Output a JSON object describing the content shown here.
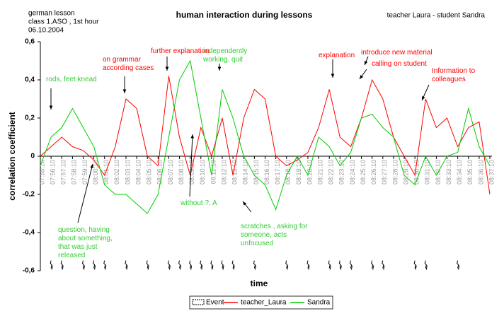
{
  "chart_data": {
    "type": "line",
    "title": "human interaction during lessons",
    "subtitle_left": [
      "german lesson",
      "class 1.ASO , 1st hour",
      "06.10.2004"
    ],
    "subtitle_right": "teacher Laura  - student Sandra",
    "y_label": "correlation coefficient",
    "x_label": "time",
    "categories": [
      "07:55:10",
      "07:56:10",
      "07:57:10",
      "07:58:10",
      "07:59:10",
      "08:00:10",
      "08:01:10",
      "08:02:10",
      "08:03:10",
      "08:04:10",
      "08:05:10",
      "08:06:10",
      "08:07:10",
      "08:08:10",
      "08:09:10",
      "08:10:10",
      "08:11:10",
      "08:12:10",
      "08:13:10",
      "08:14:10",
      "08:15:10",
      "08:16:10",
      "08:17:10",
      "08:18:10",
      "08:19:10",
      "08:20:10",
      "08:21:10",
      "08:22:10",
      "08:23:10",
      "08:24:10",
      "08:25:10",
      "08:26:10",
      "08:27:10",
      "08:28:10",
      "08:29:10",
      "08:30:10",
      "08:31:10",
      "08:32:10",
      "08:33:10",
      "08:34:10",
      "08:35:10",
      "08:36:10",
      "08:37:10"
    ],
    "series": [
      {
        "name": "Event",
        "color": "#000000",
        "kind": "event",
        "values": [
          null,
          -0.58,
          -0.58,
          null,
          -0.58,
          -0.58,
          -0.58,
          null,
          -0.58,
          null,
          -0.58,
          null,
          -0.58,
          -0.58,
          -0.58,
          -0.58,
          -0.58,
          -0.58,
          -0.58,
          null,
          -0.58,
          null,
          null,
          -0.58,
          null,
          -0.58,
          null,
          -0.58,
          -0.58,
          -0.58,
          null,
          -0.58,
          -0.58,
          null,
          null,
          -0.58,
          -0.58,
          null,
          null,
          -0.58,
          null,
          null,
          null
        ]
      },
      {
        "name": "teacher_Laura",
        "color": "#ff0000",
        "values": [
          0.0,
          0.05,
          0.1,
          0.05,
          0.03,
          -0.02,
          -0.1,
          0.05,
          0.3,
          0.25,
          0.0,
          -0.05,
          0.42,
          0.1,
          -0.1,
          0.15,
          0.0,
          0.2,
          -0.1,
          0.2,
          0.35,
          0.3,
          0.0,
          -0.05,
          -0.02,
          0.02,
          0.15,
          0.35,
          0.1,
          0.05,
          0.2,
          0.4,
          0.3,
          0.1,
          0.0,
          -0.1,
          0.3,
          0.15,
          0.2,
          0.05,
          0.15,
          0.18,
          -0.2
        ]
      },
      {
        "name": "Sandra",
        "color": "#00cc00",
        "values": [
          -0.05,
          0.1,
          0.15,
          0.25,
          0.15,
          0.05,
          -0.15,
          -0.2,
          -0.2,
          -0.25,
          -0.3,
          -0.2,
          0.1,
          0.4,
          0.5,
          0.2,
          -0.1,
          0.35,
          0.2,
          0.0,
          -0.1,
          -0.15,
          -0.28,
          -0.1,
          0.0,
          -0.1,
          0.1,
          0.05,
          -0.05,
          0.02,
          0.2,
          0.22,
          0.15,
          0.1,
          -0.1,
          -0.15,
          0.0,
          -0.1,
          0.0,
          0.02,
          0.25,
          0.05,
          -0.05
        ]
      }
    ],
    "ylim": [
      -0.6,
      0.6
    ],
    "yticks": [
      {
        "value": -0.6,
        "label": "-0,6"
      },
      {
        "value": -0.4,
        "label": "-0,4"
      },
      {
        "value": -0.2,
        "label": "-0,2"
      },
      0,
      {
        "value": 0.2,
        "label": "0,2"
      },
      {
        "value": 0.4,
        "label": "0,4"
      },
      {
        "value": 0.6,
        "label": "0,6"
      }
    ],
    "grid": false,
    "legend": "bottom",
    "annotations": [
      {
        "text": "rods, feet knead",
        "color": "#33cc33"
      },
      {
        "text": "on grammar\naccording cases",
        "color": "#ff0000"
      },
      {
        "text": "further explanation",
        "color": "#ff0000"
      },
      {
        "text": "independently\nworking, quit",
        "color": "#33cc33"
      },
      {
        "text": "explanation",
        "color": "#ff0000"
      },
      {
        "text": "introduce new material",
        "color": "#ff0000"
      },
      {
        "text": "calling on student",
        "color": "#ff0000"
      },
      {
        "text": "Information to\ncolleagues",
        "color": "#ff0000"
      },
      {
        "text": "without ?, A",
        "color": "#33cc33"
      },
      {
        "text": "scratches , asking for\nsomeone, acts\nunfocused",
        "color": "#33cc33"
      },
      {
        "text": "question, having\nabout something,\nthat was just\nreleased",
        "color": "#33cc33"
      }
    ]
  }
}
